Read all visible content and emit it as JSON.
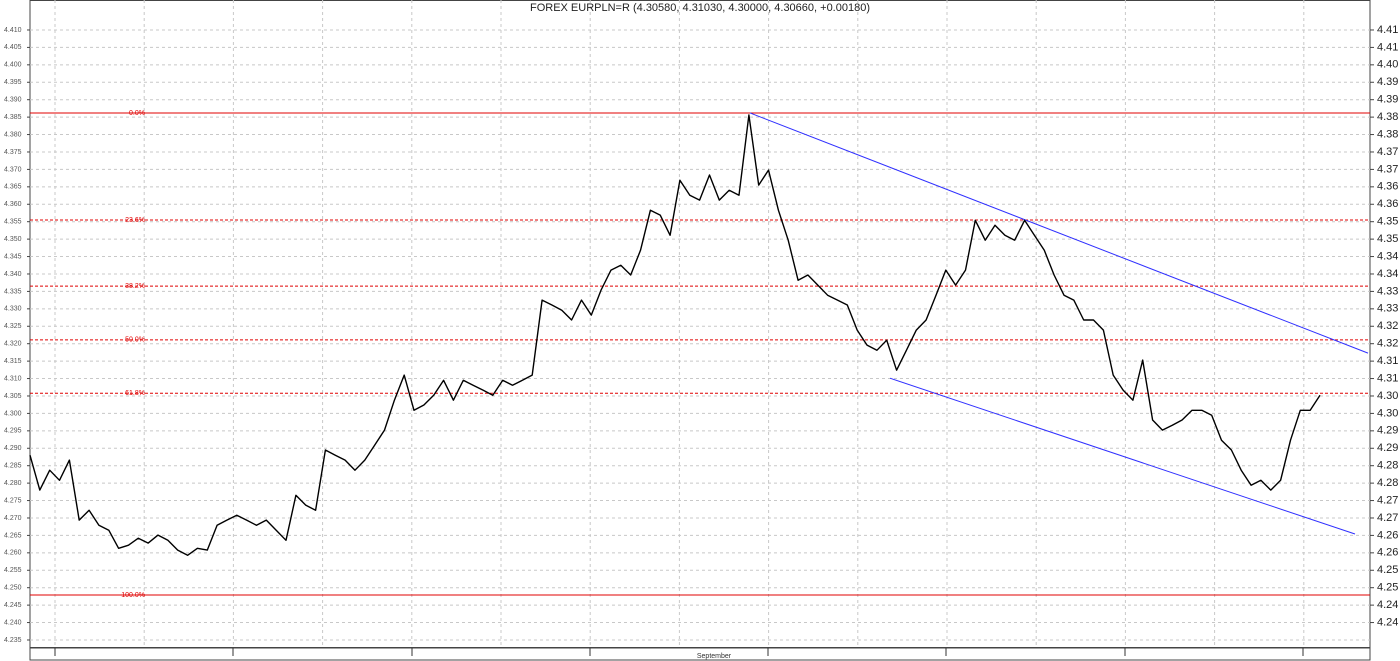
{
  "chart_data": {
    "type": "line",
    "title": "FOREX EURPLN=R (4.30580, 4.31030, 4.30000, 4.30660, +0.00180)",
    "x_label": "September",
    "grid": true,
    "ylim": [
      4.2327,
      4.4186
    ],
    "yticks": [
      {
        "value": 4.41,
        "label": "4.410"
      },
      4.405,
      {
        "value": 4.4,
        "label": "4.400"
      },
      4.395,
      {
        "value": 4.39,
        "label": "4.390"
      },
      4.385,
      {
        "value": 4.38,
        "label": "4.380"
      },
      4.375,
      {
        "value": 4.37,
        "label": "4.370"
      },
      4.365,
      {
        "value": 4.36,
        "label": "4.360"
      },
      4.355,
      {
        "value": 4.35,
        "label": "4.350"
      },
      4.345,
      {
        "value": 4.34,
        "label": "4.340"
      },
      4.335,
      {
        "value": 4.33,
        "label": "4.330"
      },
      4.325,
      {
        "value": 4.32,
        "label": "4.320"
      },
      4.315,
      {
        "value": 4.31,
        "label": "4.310"
      },
      4.305,
      {
        "value": 4.3,
        "label": "4.300"
      },
      4.295,
      {
        "value": 4.29,
        "label": "4.290"
      },
      4.285,
      {
        "value": 4.28,
        "label": "4.280"
      },
      4.275,
      {
        "value": 4.27,
        "label": "4.270"
      },
      4.265,
      {
        "value": 4.26,
        "label": "4.260"
      },
      4.255,
      {
        "value": 4.25,
        "label": "4.250"
      },
      4.245,
      {
        "value": 4.24,
        "label": "4.240"
      },
      4.235
    ],
    "y2lim": [
      4.2327,
      4.4186
    ],
    "y2ticks": [
      4.41,
      {
        "value": 4.405,
        "label": "4.41"
      },
      {
        "value": 4.4,
        "label": "4.40"
      },
      {
        "value": 4.395,
        "label": "4.39"
      },
      4.39,
      {
        "value": 4.385,
        "label": "4.38"
      },
      4.38,
      {
        "value": 4.375,
        "label": "4.37"
      },
      4.37,
      {
        "value": 4.365,
        "label": "4.36"
      },
      4.36,
      {
        "value": 4.355,
        "label": "4.35"
      },
      4.35,
      {
        "value": 4.345,
        "label": "4.34"
      },
      4.34,
      {
        "value": 4.335,
        "label": "4.33"
      },
      4.33,
      {
        "value": 4.325,
        "label": "4.32"
      },
      4.32,
      {
        "value": 4.315,
        "label": "4.31"
      },
      4.31,
      {
        "value": 4.305,
        "label": "4.30"
      },
      {
        "value": 4.3,
        "label": "4.30"
      },
      {
        "value": 4.295,
        "label": "4.29"
      },
      4.29,
      {
        "value": 4.285,
        "label": "4.28"
      },
      4.28,
      {
        "value": 4.275,
        "label": "4.27"
      },
      4.27,
      {
        "value": 4.265,
        "label": "4.26"
      },
      4.26,
      {
        "value": 4.255,
        "label": "4.25"
      },
      4.25,
      {
        "value": 4.245,
        "label": "4.24"
      },
      4.24
    ],
    "series": [
      {
        "color": "#000000",
        "values": [
          4.288,
          4.278,
          4.2837,
          4.2808,
          4.2866,
          4.2694,
          4.2722,
          4.2679,
          4.2665,
          4.2613,
          4.2622,
          4.2642,
          4.2628,
          4.2651,
          4.2636,
          4.2608,
          4.2593,
          4.2613,
          4.2608,
          4.2679,
          4.2694,
          4.2708,
          4.2694,
          4.2679,
          4.2694,
          4.2665,
          4.2636,
          4.2765,
          4.2737,
          4.2722,
          4.2895,
          4.288,
          4.2866,
          4.2837,
          4.2866,
          4.2909,
          4.2952,
          4.3038,
          4.311,
          4.3009,
          4.3024,
          4.3052,
          4.3095,
          4.3038,
          4.3095,
          4.3081,
          4.3067,
          4.3052,
          4.3095,
          4.3081,
          4.3095,
          4.311,
          4.3325,
          4.3311,
          4.3296,
          4.3268,
          4.3325,
          4.3282,
          4.3354,
          4.3411,
          4.3425,
          4.3397,
          4.3468,
          4.3583,
          4.3569,
          4.3511,
          4.3669,
          4.3626,
          4.3612,
          4.3684,
          4.3612,
          4.364,
          4.3626,
          4.3856,
          4.3655,
          4.3698,
          4.3583,
          4.3497,
          4.3382,
          4.3397,
          4.3368,
          4.3339,
          4.3325,
          4.3311,
          4.3239,
          4.3196,
          4.3181,
          4.321,
          4.3124,
          4.3181,
          4.3239,
          4.3268,
          4.3339,
          4.3411,
          4.3368,
          4.3411,
          4.3554,
          4.3497,
          4.354,
          4.3511,
          4.3497,
          4.3554,
          4.3511,
          4.3468,
          4.3397,
          4.3339,
          4.3325,
          4.3268,
          4.3268,
          4.3239,
          4.311,
          4.3067,
          4.3038,
          4.3153,
          4.2981,
          4.2952,
          4.2966,
          4.2981,
          4.3009,
          4.3009,
          4.2995,
          4.2923,
          4.2895,
          4.2837,
          4.2794,
          4.2808,
          4.278,
          4.2808,
          4.2923,
          4.3009,
          4.3009,
          4.3052
        ]
      }
    ],
    "fib_levels": [
      {
        "label": "0.0%",
        "value": 4.3862,
        "color": "#e00000",
        "dashed": false
      },
      {
        "label": "23.6%",
        "value": 4.3555,
        "color": "#e00000",
        "dashed": true
      },
      {
        "label": "38.2%",
        "value": 4.3365,
        "color": "#e00000",
        "dashed": true
      },
      {
        "label": "50.0%",
        "value": 4.3211,
        "color": "#e00000",
        "dashed": true
      },
      {
        "label": "61.8%",
        "value": 4.3058,
        "color": "#e00000",
        "dashed": true
      },
      {
        "label": "100.0%",
        "value": 4.2479,
        "color": "#e00000",
        "dashed": false
      }
    ],
    "trendlines": [
      {
        "color": "#3030ff",
        "start": 4.3862,
        "end": 4.3173
      },
      {
        "color": "#3030ff",
        "start": 4.3101,
        "end": 4.2654
      }
    ]
  }
}
